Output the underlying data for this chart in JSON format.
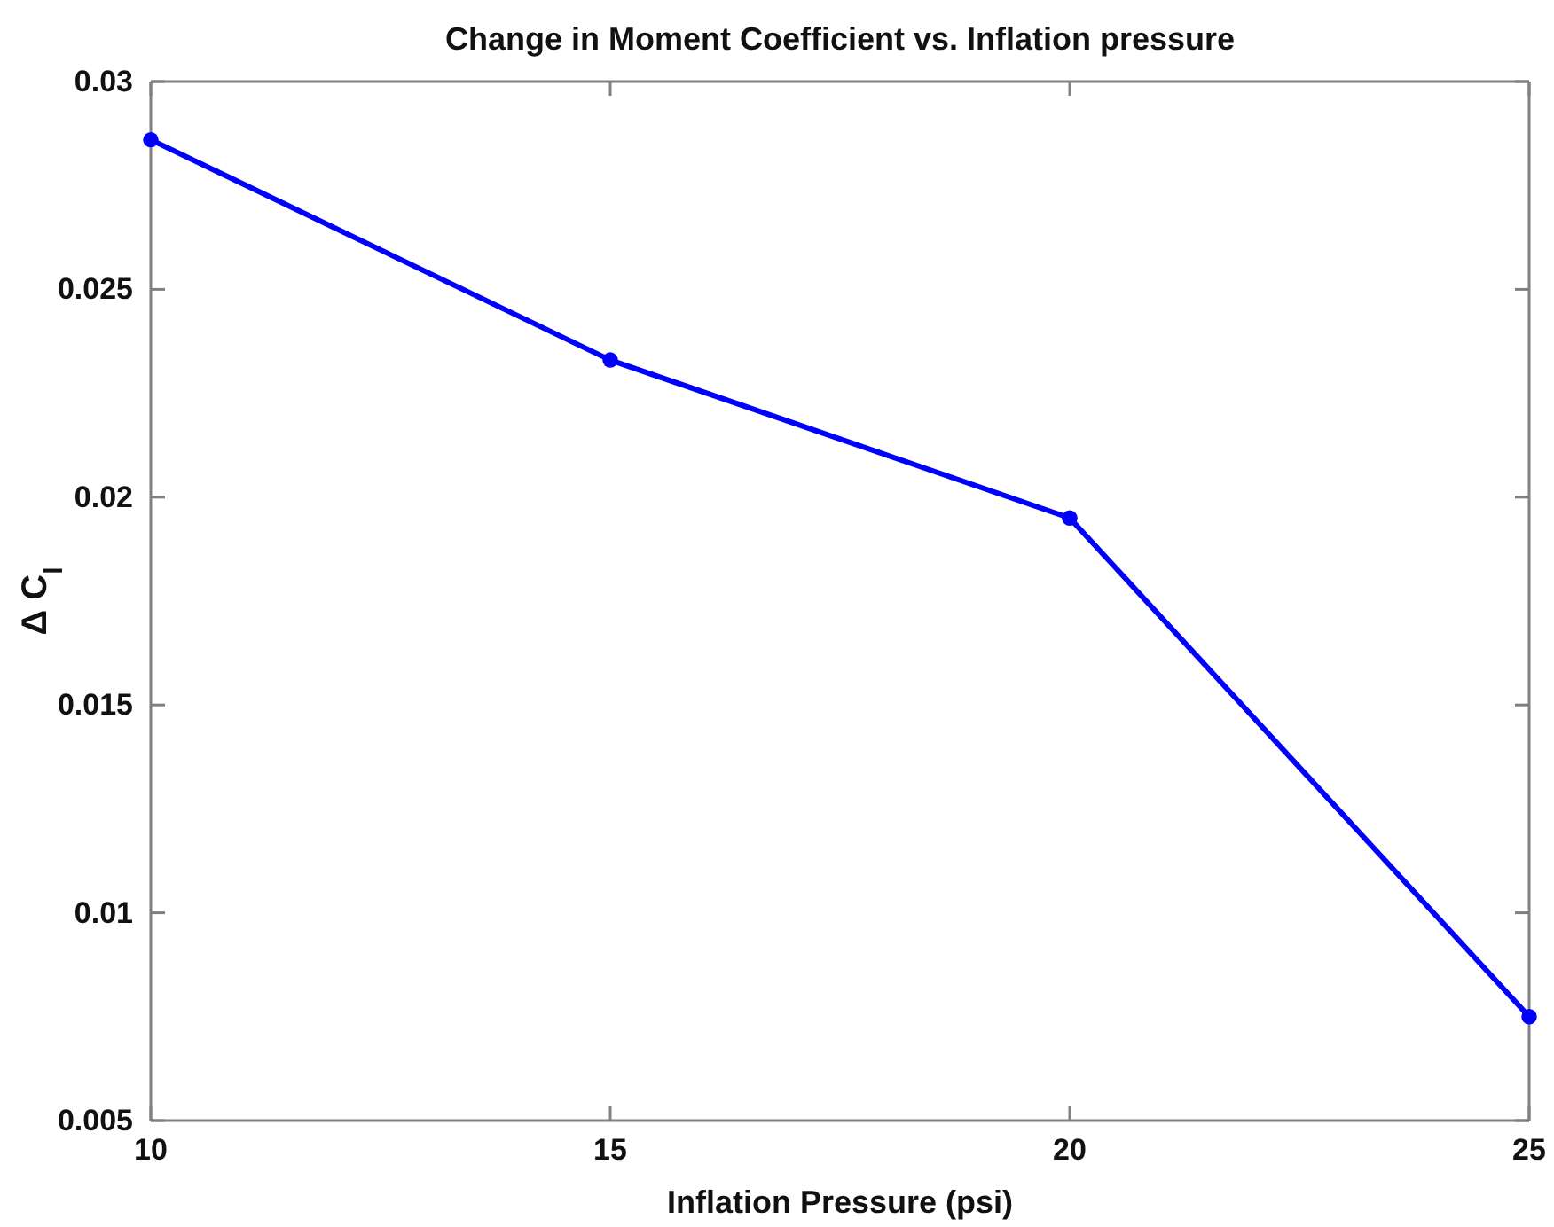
{
  "chart_data": {
    "type": "line",
    "title": "Change in Moment Coefficient vs. Inflation pressure",
    "xlabel": "Inflation Pressure (psi)",
    "ylabel": "Δ C$_{l}$",
    "x": [
      10,
      15,
      20,
      25
    ],
    "series": [
      {
        "color": "#0000ff",
        "values": [
          0.0286,
          0.0233,
          0.0195,
          0.0075
        ]
      }
    ],
    "xlim": [
      10,
      25
    ],
    "xticks": [
      10,
      15,
      20,
      25
    ],
    "ylim": [
      0.005,
      0.03
    ],
    "yticks": [
      0.005,
      0.01,
      0.015,
      0.02,
      0.025,
      0.03
    ],
    "marker": "circle",
    "line_style": "solid"
  }
}
